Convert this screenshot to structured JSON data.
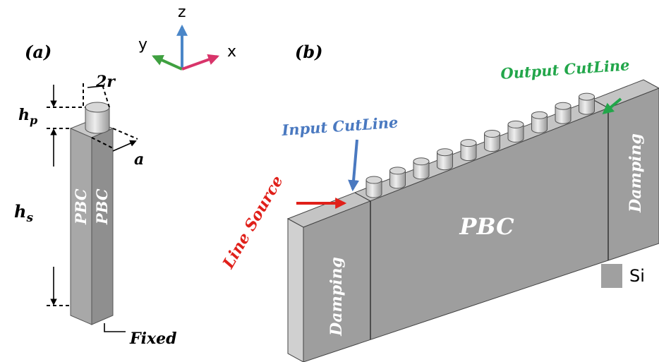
{
  "panel_a": {
    "label": "(a)",
    "axes": {
      "z": "z",
      "y": "y",
      "x": "x"
    },
    "dimensions": {
      "diameter": "2r",
      "pillar_height": {
        "base": "h",
        "sub": "p"
      },
      "lattice": "a",
      "slab_height": {
        "base": "h",
        "sub": "s"
      }
    },
    "boundaries": [
      "PBC",
      "PBC"
    ],
    "fixed": "Fixed"
  },
  "panel_b": {
    "label": "(b)",
    "input_cutline": "Input CutLine",
    "output_cutline": "Output CutLine",
    "line_source": "Line Source",
    "center": "PBC",
    "damping": [
      "Damping",
      "Damping"
    ],
    "legend": {
      "material": "Si"
    }
  }
}
